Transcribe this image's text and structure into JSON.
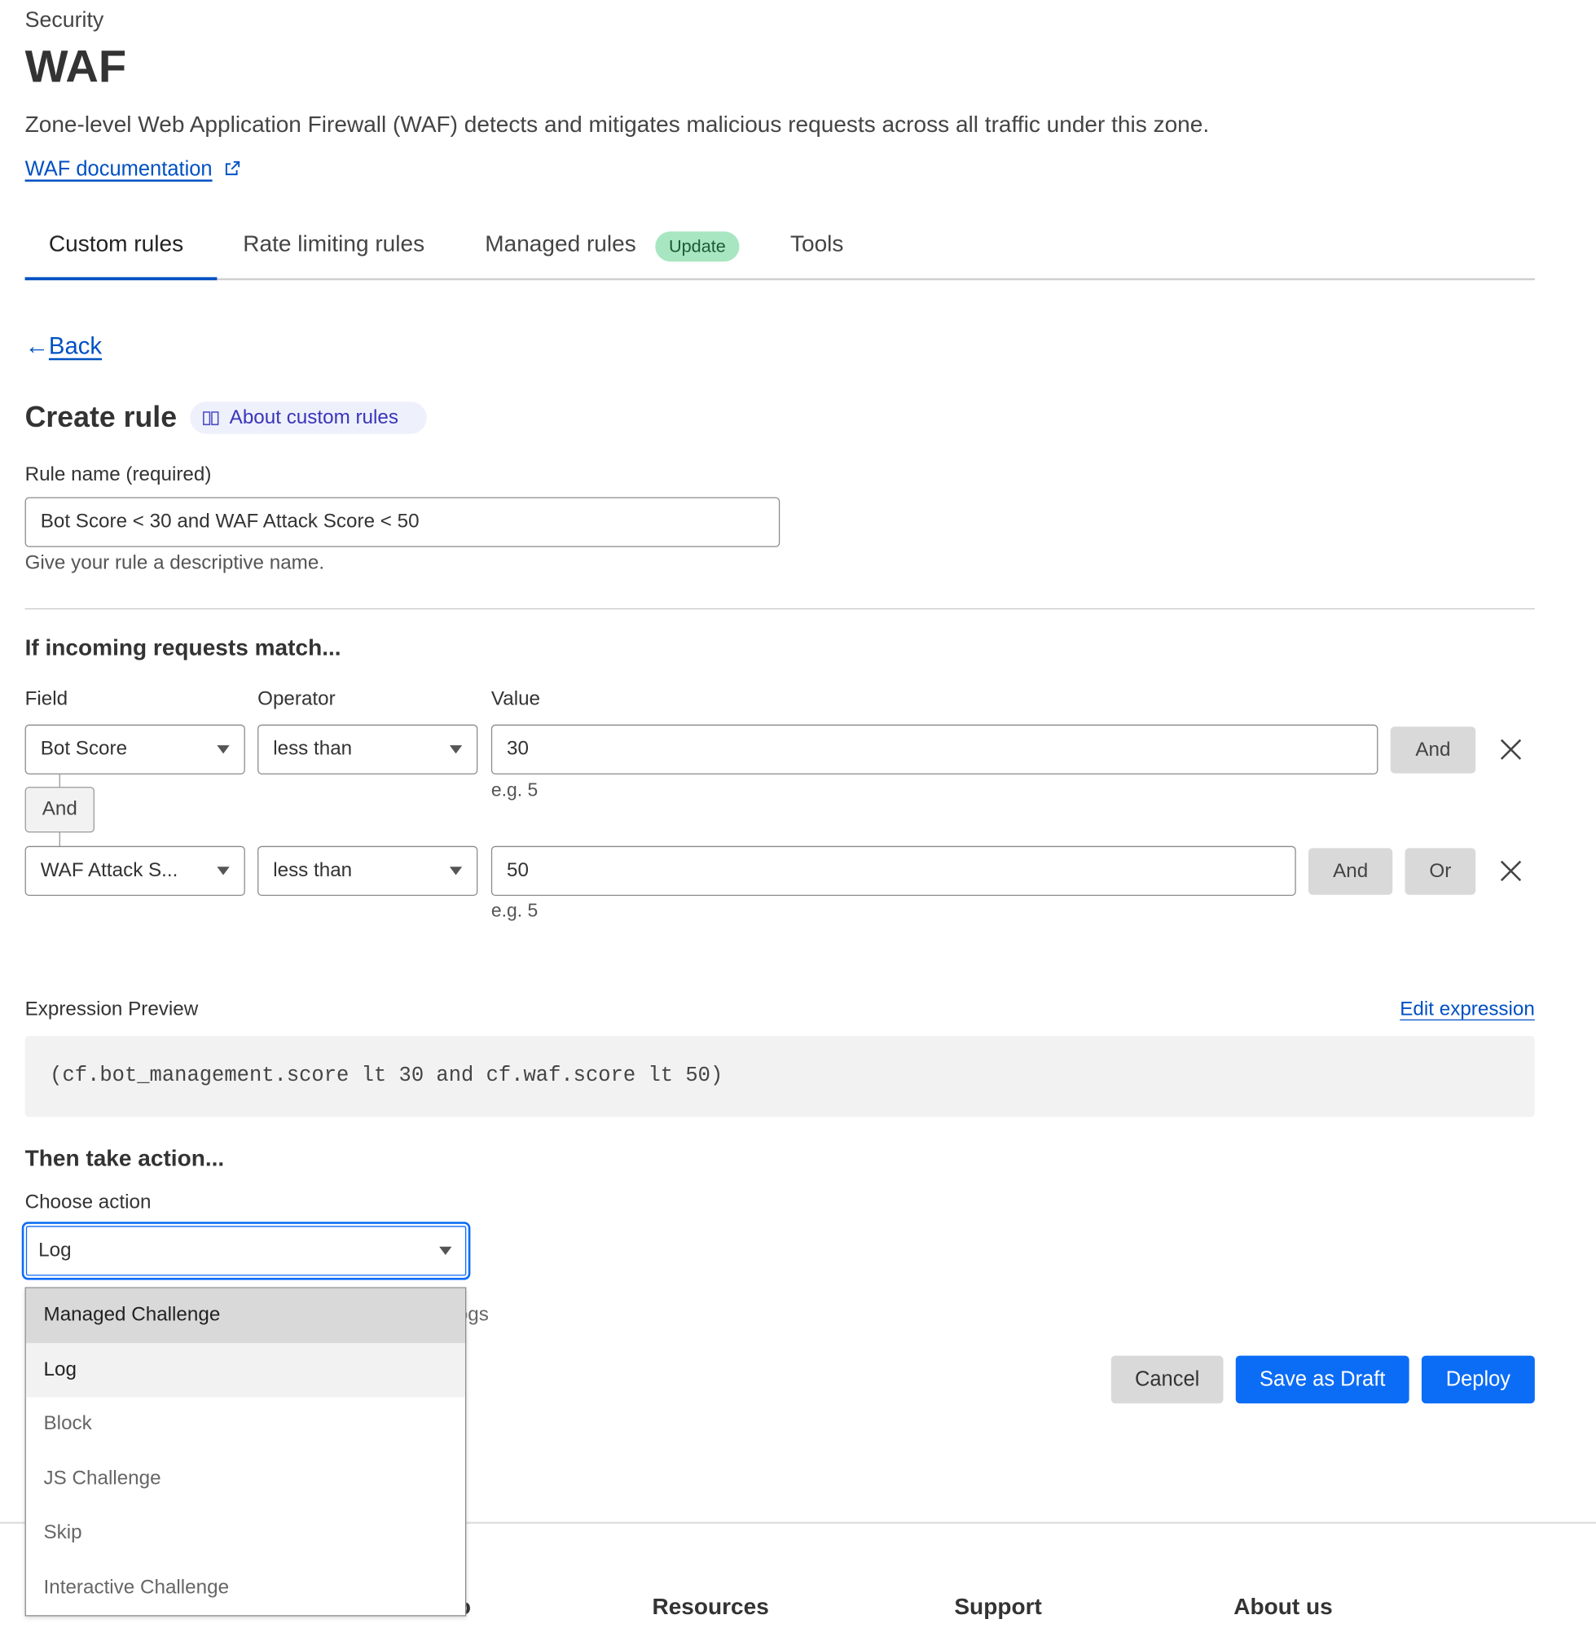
{
  "header": {
    "breadcrumb": "Security",
    "title": "WAF",
    "description": "Zone-level Web Application Firewall (WAF) detects and mitigates malicious requests across all traffic under this zone.",
    "doc_link": "WAF documentation"
  },
  "tabs": [
    {
      "label": "Custom rules",
      "active": true
    },
    {
      "label": "Rate limiting rules"
    },
    {
      "label": "Managed rules",
      "badge": "Update"
    },
    {
      "label": "Tools"
    }
  ],
  "colors": {
    "accent": "#0051c3",
    "primary_button": "#0b6cf6",
    "badge_bg": "#a8e6c1"
  },
  "back_label": "Back",
  "create_rule": {
    "title": "Create rule",
    "about_label": "About custom rules",
    "rule_name_label": "Rule name (required)",
    "rule_name_value": "Bot Score < 30 and WAF Attack Score < 50",
    "rule_name_help": "Give your rule a descriptive name."
  },
  "match": {
    "heading": "If incoming requests match...",
    "field_label": "Field",
    "operator_label": "Operator",
    "value_label": "Value",
    "connector": "And",
    "conditions": [
      {
        "field": "Bot Score",
        "operator": "less than",
        "value": "30",
        "hint": "e.g. 5",
        "and_label": "And"
      },
      {
        "field": "WAF Attack S...",
        "operator": "less than",
        "value": "50",
        "hint": "e.g. 5",
        "and_label": "And",
        "or_label": "Or"
      }
    ]
  },
  "expression": {
    "label": "Expression Preview",
    "edit_label": "Edit expression",
    "code": "(cf.bot_management.score lt 30 and cf.waf.score lt 50)"
  },
  "action": {
    "heading": "Then take action...",
    "label": "Choose action",
    "selected": "Log",
    "partial_help": "ogs",
    "options": [
      "Managed Challenge",
      "Log",
      "Block",
      "JS Challenge",
      "Skip",
      "Interactive Challenge"
    ]
  },
  "buttons": {
    "cancel": "Cancel",
    "save_draft": "Save as Draft",
    "deploy": "Deploy"
  },
  "footer": {
    "partial": "o",
    "resources": "Resources",
    "support": "Support",
    "about": "About us"
  }
}
